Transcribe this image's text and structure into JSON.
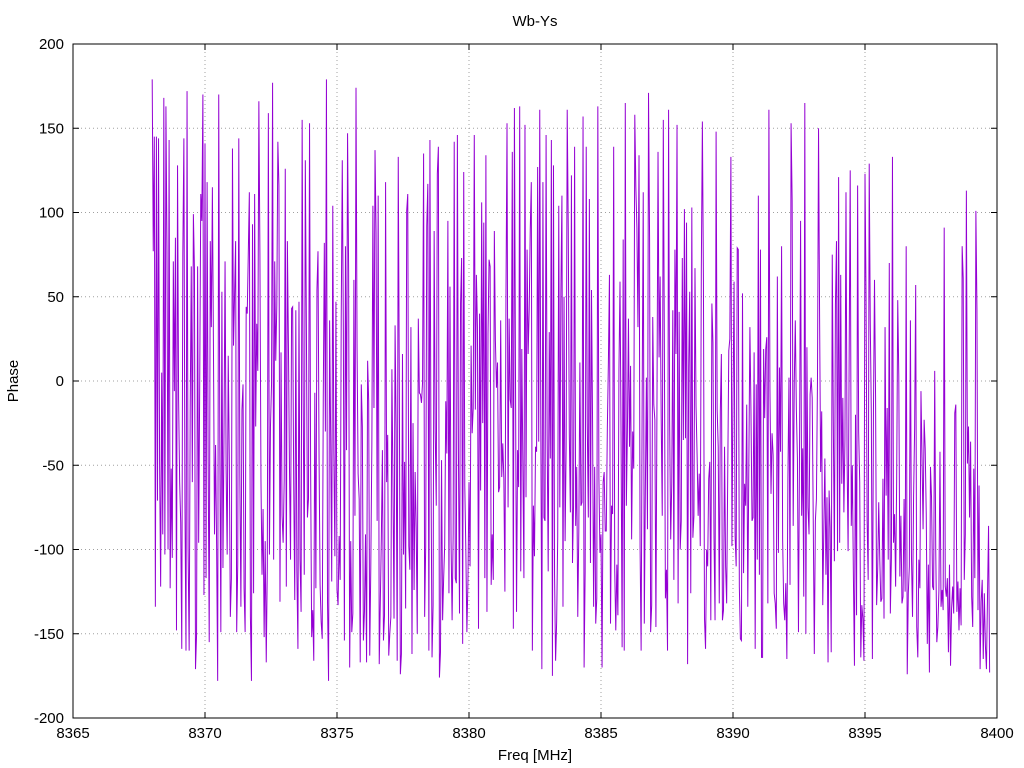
{
  "chart_data": {
    "type": "line",
    "title": "Wb-Ys",
    "xlabel": "Freq [MHz]",
    "ylabel": "Phase",
    "xlim": [
      8365,
      8400
    ],
    "ylim": [
      -200,
      200
    ],
    "x_ticks": [
      8365,
      8370,
      8375,
      8380,
      8385,
      8390,
      8395,
      8400
    ],
    "y_ticks": [
      -200,
      -150,
      -100,
      -50,
      0,
      50,
      100,
      150,
      200
    ],
    "grid": true,
    "legend": "none",
    "series": [
      {
        "color": "#9400d3",
        "x_start": 8368.0,
        "x_end": 8400.0,
        "x_step": 0.04,
        "values": [
          179,
          77,
          145,
          -134,
          145,
          -71,
          144,
          -48,
          -122,
          5,
          -91,
          168,
          -103,
          163,
          78,
          -100,
          143,
          -123,
          -52,
          -105,
          71,
          -6,
          85,
          -148,
          128,
          -11,
          -60,
          -84,
          -159,
          75,
          144,
          -72,
          -160,
          172,
          -100,
          -160,
          -16,
          68,
          -60,
          99,
          66,
          -171,
          -151,
          68,
          -96,
          -1,
          111,
          95,
          170,
          -127,
          141,
          -117,
          118,
          -48,
          -155,
          83,
          32,
          115,
          20,
          -91,
          -38,
          -98,
          -178,
          170,
          -33,
          -149,
          53,
          -111,
          -30,
          71,
          -52,
          -103,
          15,
          -45,
          -140,
          -117,
          138,
          21,
          51,
          83,
          -149,
          -109,
          144,
          -57,
          -134,
          -17,
          -2,
          -123,
          -149,
          44,
          40,
          76,
          112,
          -140,
          -178,
          93,
          -126,
          111,
          -27,
          34,
          6,
          166,
          76,
          -59,
          -115,
          -76,
          -152,
          -95,
          -167,
          -110,
          159,
          -103,
          -27,
          -2,
          177,
          -106,
          71,
          12,
          45,
          142,
          116,
          -131,
          17,
          -80,
          -96,
          -59,
          126,
          -122,
          83,
          22,
          -52,
          -106,
          43,
          44,
          -61,
          -130,
          42,
          -113,
          -159,
          47,
          -106,
          -137,
          155,
          -13,
          -115,
          131,
          32,
          -81,
          -70,
          153,
          -50,
          -152,
          -136,
          -166,
          -7,
          -123,
          54,
          77,
          -45,
          -121,
          -143,
          -153,
          -10,
          82,
          -30,
          179,
          -131,
          -178,
          36,
          -32,
          -119,
          104,
          -42,
          -104,
          47,
          -124,
          -133,
          -92,
          -118,
          37,
          131,
          30,
          -154,
          80,
          -41,
          147,
          66,
          -170,
          -95,
          -149,
          -138,
          60,
          -80,
          174,
          20,
          -55,
          -70,
          -167,
          -2,
          -27,
          -154,
          -137,
          -91,
          -167,
          12,
          -12,
          -163,
          -111,
          -38,
          104,
          -16,
          137,
          88,
          -83,
          110,
          -168,
          -132,
          -93,
          -41,
          -154,
          -139,
          118,
          -60,
          -32,
          -163,
          -150,
          -140,
          7,
          -62,
          -141,
          33,
          -29,
          -166,
          133,
          0,
          -174,
          -162,
          16,
          -103,
          -48,
          -135,
          101,
          111,
          -98,
          -112,
          32,
          -162,
          -25,
          -124,
          -54,
          -87,
          -150,
          37,
          -7,
          -8,
          -13,
          -1,
          135,
          -140,
          -98,
          92,
          117,
          -160,
          143,
          -50,
          -164,
          -133,
          89,
          -30,
          -74,
          123,
          139,
          -176,
          -161,
          -47,
          -142,
          -117,
          -97,
          -12,
          -43,
          95,
          -126,
          56,
          -95,
          -142,
          -91,
          142,
          -117,
          -120,
          146,
          -43,
          -138,
          46,
          73,
          -156,
          124,
          -62,
          -100,
          -149,
          -119,
          -60,
          -110,
          21,
          -31,
          -16,
          146,
          -17,
          63,
          32,
          -147,
          40,
          -65,
          106,
          -25,
          94,
          -117,
          134,
          -137,
          28,
          72,
          68,
          -121,
          -91,
          -118,
          89,
          24,
          -4,
          11,
          -66,
          -63,
          36,
          -57,
          -37,
          -58,
          -125,
          49,
          153,
          -75,
          37,
          -11,
          -16,
          136,
          -147,
          162,
          7,
          -137,
          -41,
          -63,
          163,
          -113,
          19,
          -49,
          -117,
          152,
          -69,
          78,
          16,
          42,
          90,
          118,
          -160,
          -74,
          -104,
          -39,
          -42,
          127,
          -36,
          161,
          -26,
          -171,
          118,
          -81,
          -83,
          146,
          -32,
          -113,
          29,
          -46,
          143,
          -175,
          128,
          -115,
          -166,
          -143,
          -93,
          104,
          -75,
          52,
          110,
          -134,
          50,
          -95,
          -39,
          161,
          91,
          -32,
          -78,
          122,
          -108,
          -74,
          139,
          -86,
          -51,
          -140,
          -89,
          11,
          -74,
          -72,
          157,
          -170,
          -113,
          139,
          -25,
          -81,
          108,
          -108,
          54,
          -23,
          -134,
          -51,
          -144,
          -129,
          163,
          -57,
          -102,
          -91,
          -170,
          -60,
          -54,
          -89,
          -89,
          -28,
          11,
          63,
          -144,
          -74,
          -79,
          139,
          -112,
          -148,
          -109,
          -139,
          7,
          59,
          -33,
          -158,
          84,
          -160,
          165,
          -74,
          -30,
          37,
          -39,
          9,
          -94,
          -30,
          -52,
          158,
          115,
          91,
          32,
          134,
          -98,
          -160,
          -8,
          112,
          -144,
          -65,
          2,
          -88,
          171,
          85,
          -149,
          -133,
          38,
          -14,
          -23,
          -146,
          -13,
          136,
          14,
          62,
          -22,
          -80,
          155,
          21,
          -129,
          -112,
          -160,
          161,
          -24,
          -94,
          -61,
          42,
          -118,
          78,
          16,
          152,
          -132,
          41,
          -100,
          -83,
          73,
          -35,
          102,
          -34,
          94,
          -168,
          8,
          53,
          -126,
          103,
          -93,
          -80,
          67,
          -15,
          -44,
          -80,
          -55,
          -98,
          66,
          154,
          59,
          -141,
          -159,
          -100,
          -110,
          -58,
          -48,
          -142,
          46,
          23,
          -92,
          -142,
          148,
          -17,
          -39,
          -132,
          -18,
          16,
          -142,
          -136,
          -39,
          -110,
          -132,
          -56,
          18,
          25,
          133,
          -98,
          -10,
          59,
          -92,
          -110,
          79,
          78,
          -122,
          -153,
          -154,
          52,
          -114,
          -61,
          -74,
          -14,
          -134,
          -49,
          32,
          -17,
          -83,
          -81,
          17,
          -159,
          -2,
          -106,
          110,
          -115,
          78,
          -164,
          -164,
          19,
          -22,
          19,
          26,
          -132,
          161,
          -6,
          -67,
          -31,
          -44,
          -126,
          -132,
          -147,
          62,
          -102,
          8,
          -42,
          80,
          -94,
          -132,
          -142,
          -120,
          -165,
          -58,
          2,
          -121,
          153,
          107,
          -86,
          -2,
          36,
          -17,
          -46,
          -149,
          -40,
          95,
          -80,
          -40,
          -128,
          165,
          -150,
          20,
          -75,
          -91,
          -8,
          2,
          -10,
          -84,
          -162,
          -83,
          -70,
          1,
          150,
          38,
          -54,
          -18,
          -133,
          -88,
          -46,
          -115,
          -69,
          -167,
          -65,
          -87,
          -161,
          75,
          -24,
          -107,
          45,
          83,
          -101,
          121,
          -96,
          63,
          -61,
          -10,
          -78,
          -35,
          112,
          -44,
          -101,
          15,
          125,
          -86,
          -50,
          -115,
          -169,
          -20,
          -139,
          116,
          -30,
          -60,
          -164,
          -133,
          -141,
          -166,
          123,
          49,
          -83,
          -118,
          129,
          34,
          -20,
          -165,
          -18,
          60,
          -9,
          -133,
          -112,
          -72,
          -106,
          -131,
          -129,
          -58,
          -141,
          32,
          -68,
          -16,
          -106,
          70,
          -138,
          -105,
          133,
          -96,
          -79,
          -122,
          -58,
          48,
          3,
          -116,
          -80,
          -132,
          -128,
          -70,
          -125,
          80,
          -174,
          -126,
          -110,
          36,
          -104,
          -140,
          -69,
          -28,
          57,
          -146,
          -164,
          -106,
          -123,
          -6,
          -45,
          -88,
          -23,
          -40,
          -79,
          -156,
          -109,
          -173,
          -51,
          -69,
          -122,
          -124,
          6,
          -101,
          -155,
          -146,
          -124,
          -42,
          -134,
          -124,
          -136,
          91,
          -122,
          -128,
          -117,
          -161,
          -109,
          -169,
          -135,
          -122,
          -138,
          -19,
          -14,
          -137,
          -119,
          -148,
          -123,
          -145,
          80,
          61,
          -118,
          -91,
          113,
          -49,
          -27,
          -81,
          -36,
          -128,
          -146,
          -52,
          -117,
          101,
          43,
          -136,
          -62,
          -171,
          -131,
          -118,
          -165,
          -126,
          -157,
          -171,
          -128,
          -86,
          -173
        ]
      }
    ]
  }
}
